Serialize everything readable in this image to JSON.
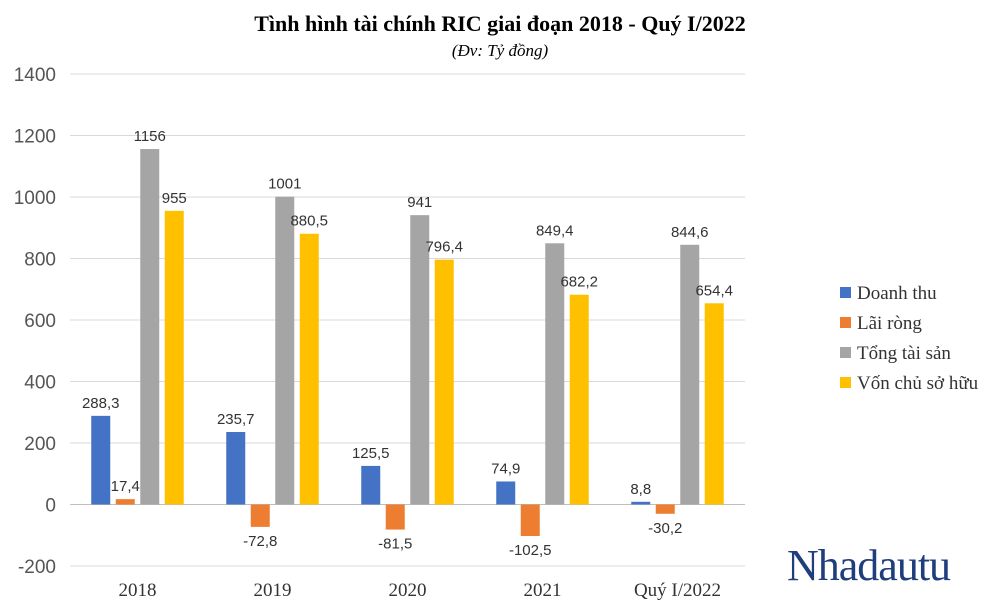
{
  "chart_data": {
    "type": "bar",
    "title": "Tình hình tài chính RIC giai đoạn 2018 - Quý I/2022",
    "subtitle": "(Đv: Tỷ đồng)",
    "categories": [
      "2018",
      "2019",
      "2020",
      "2021",
      "Quý I/2022"
    ],
    "series": [
      {
        "name": "Doanh thu",
        "color": "#4472c4",
        "values": [
          288.3,
          235.7,
          125.5,
          74.9,
          8.8
        ],
        "labels": [
          "288,3",
          "235,7",
          "125,5",
          "74,9",
          "8,8"
        ]
      },
      {
        "name": "Lãi ròng",
        "color": "#ed7d31",
        "values": [
          17.4,
          -72.8,
          -81.5,
          -102.5,
          -30.2
        ],
        "labels": [
          "17,4",
          "-72,8",
          "-81,5",
          "-102,5",
          "-30,2"
        ]
      },
      {
        "name": "Tổng tài sản",
        "color": "#a5a5a5",
        "values": [
          1156,
          1001,
          941,
          849.4,
          844.6
        ],
        "labels": [
          "1156",
          "1001",
          "941",
          "849,4",
          "844,6"
        ]
      },
      {
        "name": "Vốn chủ sở hữu",
        "color": "#ffc000",
        "values": [
          955,
          880.5,
          796.4,
          682.2,
          654.4
        ],
        "labels": [
          "955",
          "880,5",
          "796,4",
          "682,2",
          "654,4"
        ]
      }
    ],
    "ylim": [
      -200,
      1400
    ],
    "yticks": [
      -200,
      0,
      200,
      400,
      600,
      800,
      1000,
      1200,
      1400
    ],
    "grid": true,
    "legend_position": "right"
  },
  "watermark": "Nhadautu"
}
